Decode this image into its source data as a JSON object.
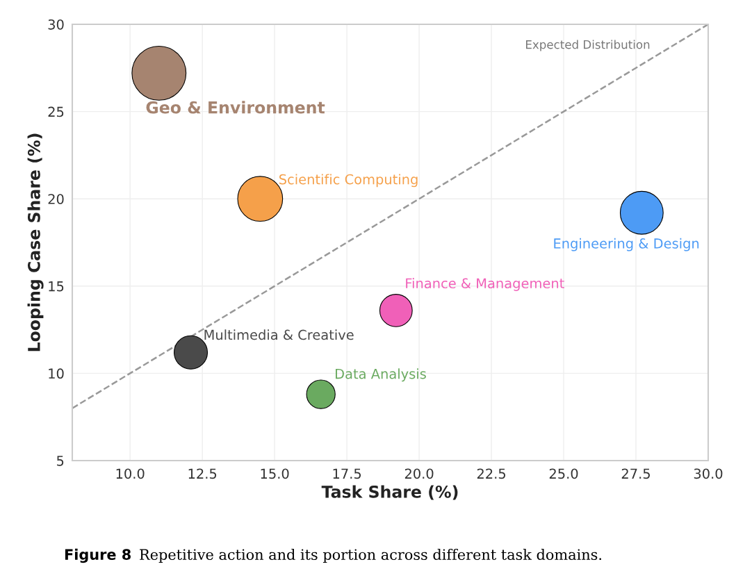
{
  "chart_data": {
    "type": "bubble",
    "xlabel": "Task Share (%)",
    "ylabel": "Looping Case Share (%)",
    "xlim": [
      8,
      30
    ],
    "ylim": [
      5,
      30
    ],
    "xticks": [
      {
        "value": 10,
        "label": "10.0"
      },
      {
        "value": 12.5,
        "label": "12.5"
      },
      {
        "value": 15,
        "label": "15.0"
      },
      {
        "value": 17.5,
        "label": "17.5"
      },
      {
        "value": 20,
        "label": "20.0"
      },
      {
        "value": 22.5,
        "label": "22.5"
      },
      {
        "value": 25,
        "label": "25.0"
      },
      {
        "value": 27.5,
        "label": "27.5"
      },
      {
        "value": 30,
        "label": "30.0"
      }
    ],
    "yticks": [
      5,
      10,
      15,
      20,
      25,
      30
    ],
    "grid": true,
    "legend": false,
    "series": [
      {
        "name": "Geo & Environment",
        "color": "#a68470",
        "x": [
          11.0
        ],
        "values": [
          27.2
        ],
        "sizes": [
          1
        ]
      },
      {
        "name": "Scientific Computing",
        "color": "#f5a04a",
        "x": [
          14.5
        ],
        "values": [
          20.0
        ],
        "sizes": [
          0.69
        ]
      },
      {
        "name": "Engineering & Design",
        "color": "#4d9bf5",
        "x": [
          27.7
        ],
        "values": [
          19.2
        ],
        "sizes": [
          0.63
        ]
      },
      {
        "name": "Finance & Management",
        "color": "#f060b8",
        "x": [
          19.2
        ],
        "values": [
          13.6
        ],
        "sizes": [
          0.36
        ]
      },
      {
        "name": "Multimedia & Creative",
        "color": "#4a4a4a",
        "x": [
          12.1
        ],
        "values": [
          11.2
        ],
        "sizes": [
          0.38
        ]
      },
      {
        "name": "Data Analysis",
        "color": "#6aaa60",
        "x": [
          16.6
        ],
        "values": [
          8.8
        ],
        "sizes": [
          0.28
        ]
      },
      {
        "name": "Expected Distribution",
        "type": "line",
        "color": "#999999",
        "line_style": "dashed",
        "marker": "none",
        "x": [
          8,
          30
        ],
        "values": [
          8,
          30
        ]
      }
    ],
    "annotations": [
      "Figure 8",
      "Repetitive action and its portion across different task domains."
    ]
  }
}
